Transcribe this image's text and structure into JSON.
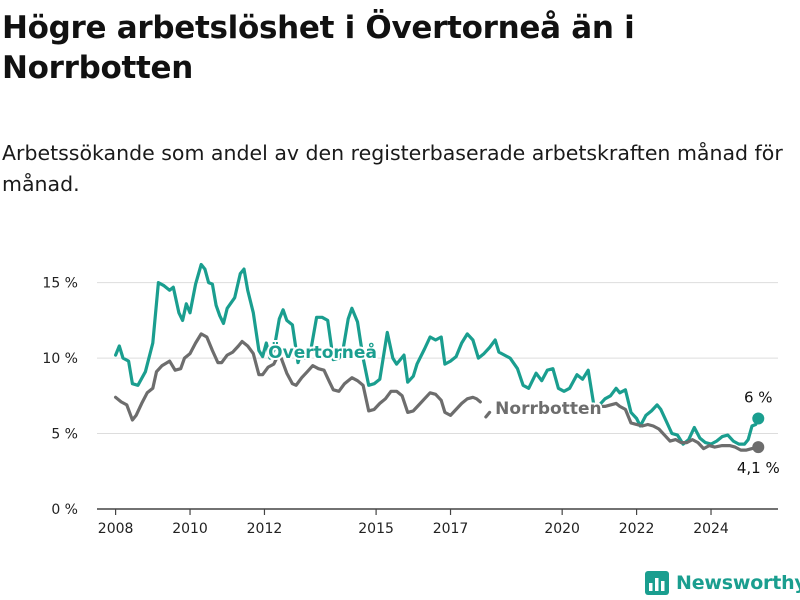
{
  "title": "Högre arbetslöshet i Övertorneå än i Norrbotten",
  "subtitle": "Arbetssökande som andel av den registerbaserade arbetskraften månad för månad.",
  "logo": {
    "text": "Newsworthy",
    "icon": "bar-chart-logo-icon"
  },
  "colors": {
    "overtornea": "#1a9e8f",
    "norrbotten": "#6d6d6d",
    "axis": "#444444",
    "grid": "#dddddd"
  },
  "chart_data": {
    "type": "line",
    "xlabel": "",
    "ylabel": "",
    "xlim": [
      2007.5,
      2025.8
    ],
    "ylim": [
      0,
      16.5
    ],
    "yticks": [
      0,
      5,
      10,
      15
    ],
    "ytick_labels": [
      "0 %",
      "5 %",
      "10 %",
      "15 %"
    ],
    "xticks": [
      2008,
      2010,
      2012,
      2015,
      2017,
      2020,
      2022,
      2024
    ],
    "xtick_labels": [
      "2008",
      "2010",
      "2012",
      "2015",
      "2017",
      "2020",
      "2022",
      "2024"
    ],
    "grid": true,
    "series": [
      {
        "name": "Övertorneå",
        "key": "overtornea",
        "end_label": "6 %",
        "points": [
          [
            2008.0,
            10.2
          ],
          [
            2008.1,
            10.8
          ],
          [
            2008.2,
            10.0
          ],
          [
            2008.35,
            9.8
          ],
          [
            2008.45,
            8.3
          ],
          [
            2008.6,
            8.2
          ],
          [
            2008.8,
            9.1
          ],
          [
            2009.0,
            11.0
          ],
          [
            2009.15,
            15.0
          ],
          [
            2009.3,
            14.8
          ],
          [
            2009.45,
            14.5
          ],
          [
            2009.55,
            14.7
          ],
          [
            2009.7,
            13.0
          ],
          [
            2009.8,
            12.5
          ],
          [
            2009.9,
            13.6
          ],
          [
            2010.0,
            13.0
          ],
          [
            2010.15,
            14.9
          ],
          [
            2010.3,
            16.2
          ],
          [
            2010.4,
            15.9
          ],
          [
            2010.5,
            15.0
          ],
          [
            2010.6,
            14.9
          ],
          [
            2010.7,
            13.5
          ],
          [
            2010.8,
            12.8
          ],
          [
            2010.9,
            12.3
          ],
          [
            2011.0,
            13.3
          ],
          [
            2011.2,
            14.0
          ],
          [
            2011.35,
            15.6
          ],
          [
            2011.45,
            15.9
          ],
          [
            2011.55,
            14.5
          ],
          [
            2011.7,
            13.0
          ],
          [
            2011.85,
            10.5
          ],
          [
            2011.95,
            10.1
          ],
          [
            2012.05,
            11.0
          ],
          [
            2012.15,
            10.0
          ],
          [
            2012.25,
            10.5
          ],
          [
            2012.4,
            12.6
          ],
          [
            2012.5,
            13.2
          ],
          [
            2012.6,
            12.5
          ],
          [
            2012.75,
            12.2
          ],
          [
            2012.9,
            9.7
          ],
          [
            2013.0,
            10.5
          ],
          [
            2013.1,
            10.0
          ],
          [
            2013.25,
            10.6
          ],
          [
            2013.4,
            12.7
          ],
          [
            2013.55,
            12.7
          ],
          [
            2013.7,
            12.5
          ],
          [
            2013.85,
            9.9
          ],
          [
            2014.0,
            10.0
          ],
          [
            2014.1,
            10.4
          ],
          [
            2014.25,
            12.6
          ],
          [
            2014.35,
            13.3
          ],
          [
            2014.5,
            12.4
          ],
          [
            2014.65,
            10.0
          ],
          [
            2014.8,
            8.2
          ],
          [
            2014.95,
            8.3
          ],
          [
            2015.1,
            8.6
          ],
          [
            2015.3,
            11.7
          ],
          [
            2015.45,
            10.0
          ],
          [
            2015.55,
            9.6
          ],
          [
            2015.75,
            10.2
          ],
          [
            2015.85,
            8.4
          ],
          [
            2016.0,
            8.8
          ],
          [
            2016.1,
            9.6
          ],
          [
            2016.3,
            10.6
          ],
          [
            2016.45,
            11.4
          ],
          [
            2016.6,
            11.2
          ],
          [
            2016.75,
            11.4
          ],
          [
            2016.85,
            9.6
          ],
          [
            2017.0,
            9.8
          ],
          [
            2017.15,
            10.1
          ],
          [
            2017.3,
            11.0
          ],
          [
            2017.45,
            11.6
          ],
          [
            2017.6,
            11.2
          ],
          [
            2017.75,
            10.0
          ],
          [
            2017.9,
            10.3
          ],
          [
            2018.05,
            10.7
          ],
          [
            2018.2,
            11.2
          ],
          [
            2018.3,
            10.4
          ],
          [
            2018.45,
            10.2
          ],
          [
            2018.6,
            10.0
          ],
          [
            2018.8,
            9.3
          ],
          [
            2018.95,
            8.2
          ],
          [
            2019.1,
            8.0
          ],
          [
            2019.3,
            9.0
          ],
          [
            2019.45,
            8.5
          ],
          [
            2019.6,
            9.2
          ],
          [
            2019.75,
            9.3
          ],
          [
            2019.9,
            8.0
          ],
          [
            2020.05,
            7.8
          ],
          [
            2020.2,
            8.0
          ],
          [
            2020.4,
            8.9
          ],
          [
            2020.55,
            8.6
          ],
          [
            2020.7,
            9.2
          ],
          [
            2020.85,
            6.9
          ],
          [
            2021.0,
            6.9
          ],
          [
            2021.15,
            7.3
          ],
          [
            2021.3,
            7.5
          ],
          [
            2021.45,
            8.0
          ],
          [
            2021.55,
            7.7
          ],
          [
            2021.7,
            7.9
          ],
          [
            2021.85,
            6.4
          ],
          [
            2022.0,
            6.0
          ],
          [
            2022.1,
            5.5
          ],
          [
            2022.25,
            6.2
          ],
          [
            2022.4,
            6.5
          ],
          [
            2022.55,
            6.9
          ],
          [
            2022.65,
            6.6
          ],
          [
            2022.8,
            5.8
          ],
          [
            2022.95,
            5.0
          ],
          [
            2023.1,
            4.9
          ],
          [
            2023.25,
            4.3
          ],
          [
            2023.4,
            4.6
          ],
          [
            2023.55,
            5.4
          ],
          [
            2023.7,
            4.7
          ],
          [
            2023.85,
            4.4
          ],
          [
            2024.0,
            4.3
          ],
          [
            2024.15,
            4.5
          ],
          [
            2024.3,
            4.8
          ],
          [
            2024.45,
            4.9
          ],
          [
            2024.6,
            4.5
          ],
          [
            2024.75,
            4.3
          ],
          [
            2024.9,
            4.3
          ],
          [
            2025.0,
            4.6
          ],
          [
            2025.1,
            5.5
          ],
          [
            2025.2,
            5.6
          ],
          [
            2025.27,
            6.0
          ]
        ]
      },
      {
        "name": "Norrbotten",
        "key": "norrbotten",
        "end_label": "4,1 %",
        "points": [
          [
            2008.0,
            7.4
          ],
          [
            2008.15,
            7.1
          ],
          [
            2008.3,
            6.9
          ],
          [
            2008.45,
            5.9
          ],
          [
            2008.55,
            6.2
          ],
          [
            2008.7,
            7.0
          ],
          [
            2008.85,
            7.7
          ],
          [
            2009.0,
            8.0
          ],
          [
            2009.1,
            9.1
          ],
          [
            2009.25,
            9.5
          ],
          [
            2009.45,
            9.8
          ],
          [
            2009.6,
            9.2
          ],
          [
            2009.75,
            9.3
          ],
          [
            2009.85,
            10.0
          ],
          [
            2010.0,
            10.3
          ],
          [
            2010.15,
            11.0
          ],
          [
            2010.3,
            11.6
          ],
          [
            2010.45,
            11.4
          ],
          [
            2010.6,
            10.5
          ],
          [
            2010.75,
            9.7
          ],
          [
            2010.85,
            9.7
          ],
          [
            2011.0,
            10.2
          ],
          [
            2011.15,
            10.4
          ],
          [
            2011.3,
            10.8
          ],
          [
            2011.4,
            11.1
          ],
          [
            2011.55,
            10.8
          ],
          [
            2011.7,
            10.3
          ],
          [
            2011.85,
            8.9
          ],
          [
            2011.95,
            8.9
          ],
          [
            2012.1,
            9.4
          ],
          [
            2012.25,
            9.6
          ],
          [
            2012.35,
            10.1
          ],
          null,
          [
            2012.45,
            10.0
          ],
          [
            2012.6,
            9.0
          ],
          [
            2012.75,
            8.3
          ],
          [
            2012.85,
            8.2
          ],
          [
            2013.0,
            8.7
          ],
          [
            2013.15,
            9.1
          ],
          [
            2013.3,
            9.5
          ],
          [
            2013.45,
            9.3
          ],
          [
            2013.6,
            9.2
          ],
          [
            2013.75,
            8.4
          ],
          [
            2013.85,
            7.9
          ],
          [
            2014.0,
            7.8
          ],
          [
            2014.15,
            8.3
          ],
          [
            2014.35,
            8.7
          ],
          [
            2014.5,
            8.5
          ],
          [
            2014.65,
            8.2
          ],
          [
            2014.8,
            6.5
          ],
          [
            2014.95,
            6.6
          ],
          [
            2015.1,
            7.0
          ],
          [
            2015.25,
            7.3
          ],
          [
            2015.4,
            7.8
          ],
          [
            2015.55,
            7.8
          ],
          [
            2015.7,
            7.5
          ],
          [
            2015.85,
            6.4
          ],
          [
            2016.0,
            6.5
          ],
          [
            2016.15,
            6.9
          ],
          [
            2016.3,
            7.3
          ],
          [
            2016.45,
            7.7
          ],
          [
            2016.6,
            7.6
          ],
          [
            2016.75,
            7.2
          ],
          [
            2016.85,
            6.4
          ],
          [
            2017.0,
            6.2
          ],
          [
            2017.15,
            6.6
          ],
          [
            2017.3,
            7.0
          ],
          [
            2017.45,
            7.3
          ],
          [
            2017.6,
            7.4
          ],
          [
            2017.7,
            7.3
          ],
          [
            2017.8,
            7.1
          ],
          null,
          [
            2017.95,
            6.1
          ],
          [
            2018.05,
            6.4
          ],
          null,
          [
            2020.85,
            6.7
          ],
          [
            2021.0,
            6.8
          ],
          [
            2021.15,
            6.8
          ],
          [
            2021.3,
            6.9
          ],
          [
            2021.45,
            7.0
          ],
          [
            2021.55,
            6.8
          ],
          [
            2021.7,
            6.6
          ],
          [
            2021.85,
            5.7
          ],
          [
            2022.0,
            5.6
          ],
          [
            2022.15,
            5.5
          ],
          [
            2022.3,
            5.6
          ],
          [
            2022.45,
            5.5
          ],
          [
            2022.6,
            5.3
          ],
          [
            2022.75,
            4.9
          ],
          [
            2022.9,
            4.5
          ],
          [
            2023.05,
            4.6
          ],
          [
            2023.2,
            4.4
          ],
          [
            2023.35,
            4.4
          ],
          [
            2023.5,
            4.6
          ],
          [
            2023.65,
            4.4
          ],
          [
            2023.8,
            4.0
          ],
          [
            2023.95,
            4.2
          ],
          [
            2024.1,
            4.1
          ],
          [
            2024.3,
            4.2
          ],
          [
            2024.5,
            4.2
          ],
          [
            2024.65,
            4.1
          ],
          [
            2024.8,
            3.9
          ],
          [
            2024.95,
            3.9
          ],
          [
            2025.1,
            4.0
          ],
          [
            2025.27,
            4.1
          ]
        ]
      }
    ]
  }
}
